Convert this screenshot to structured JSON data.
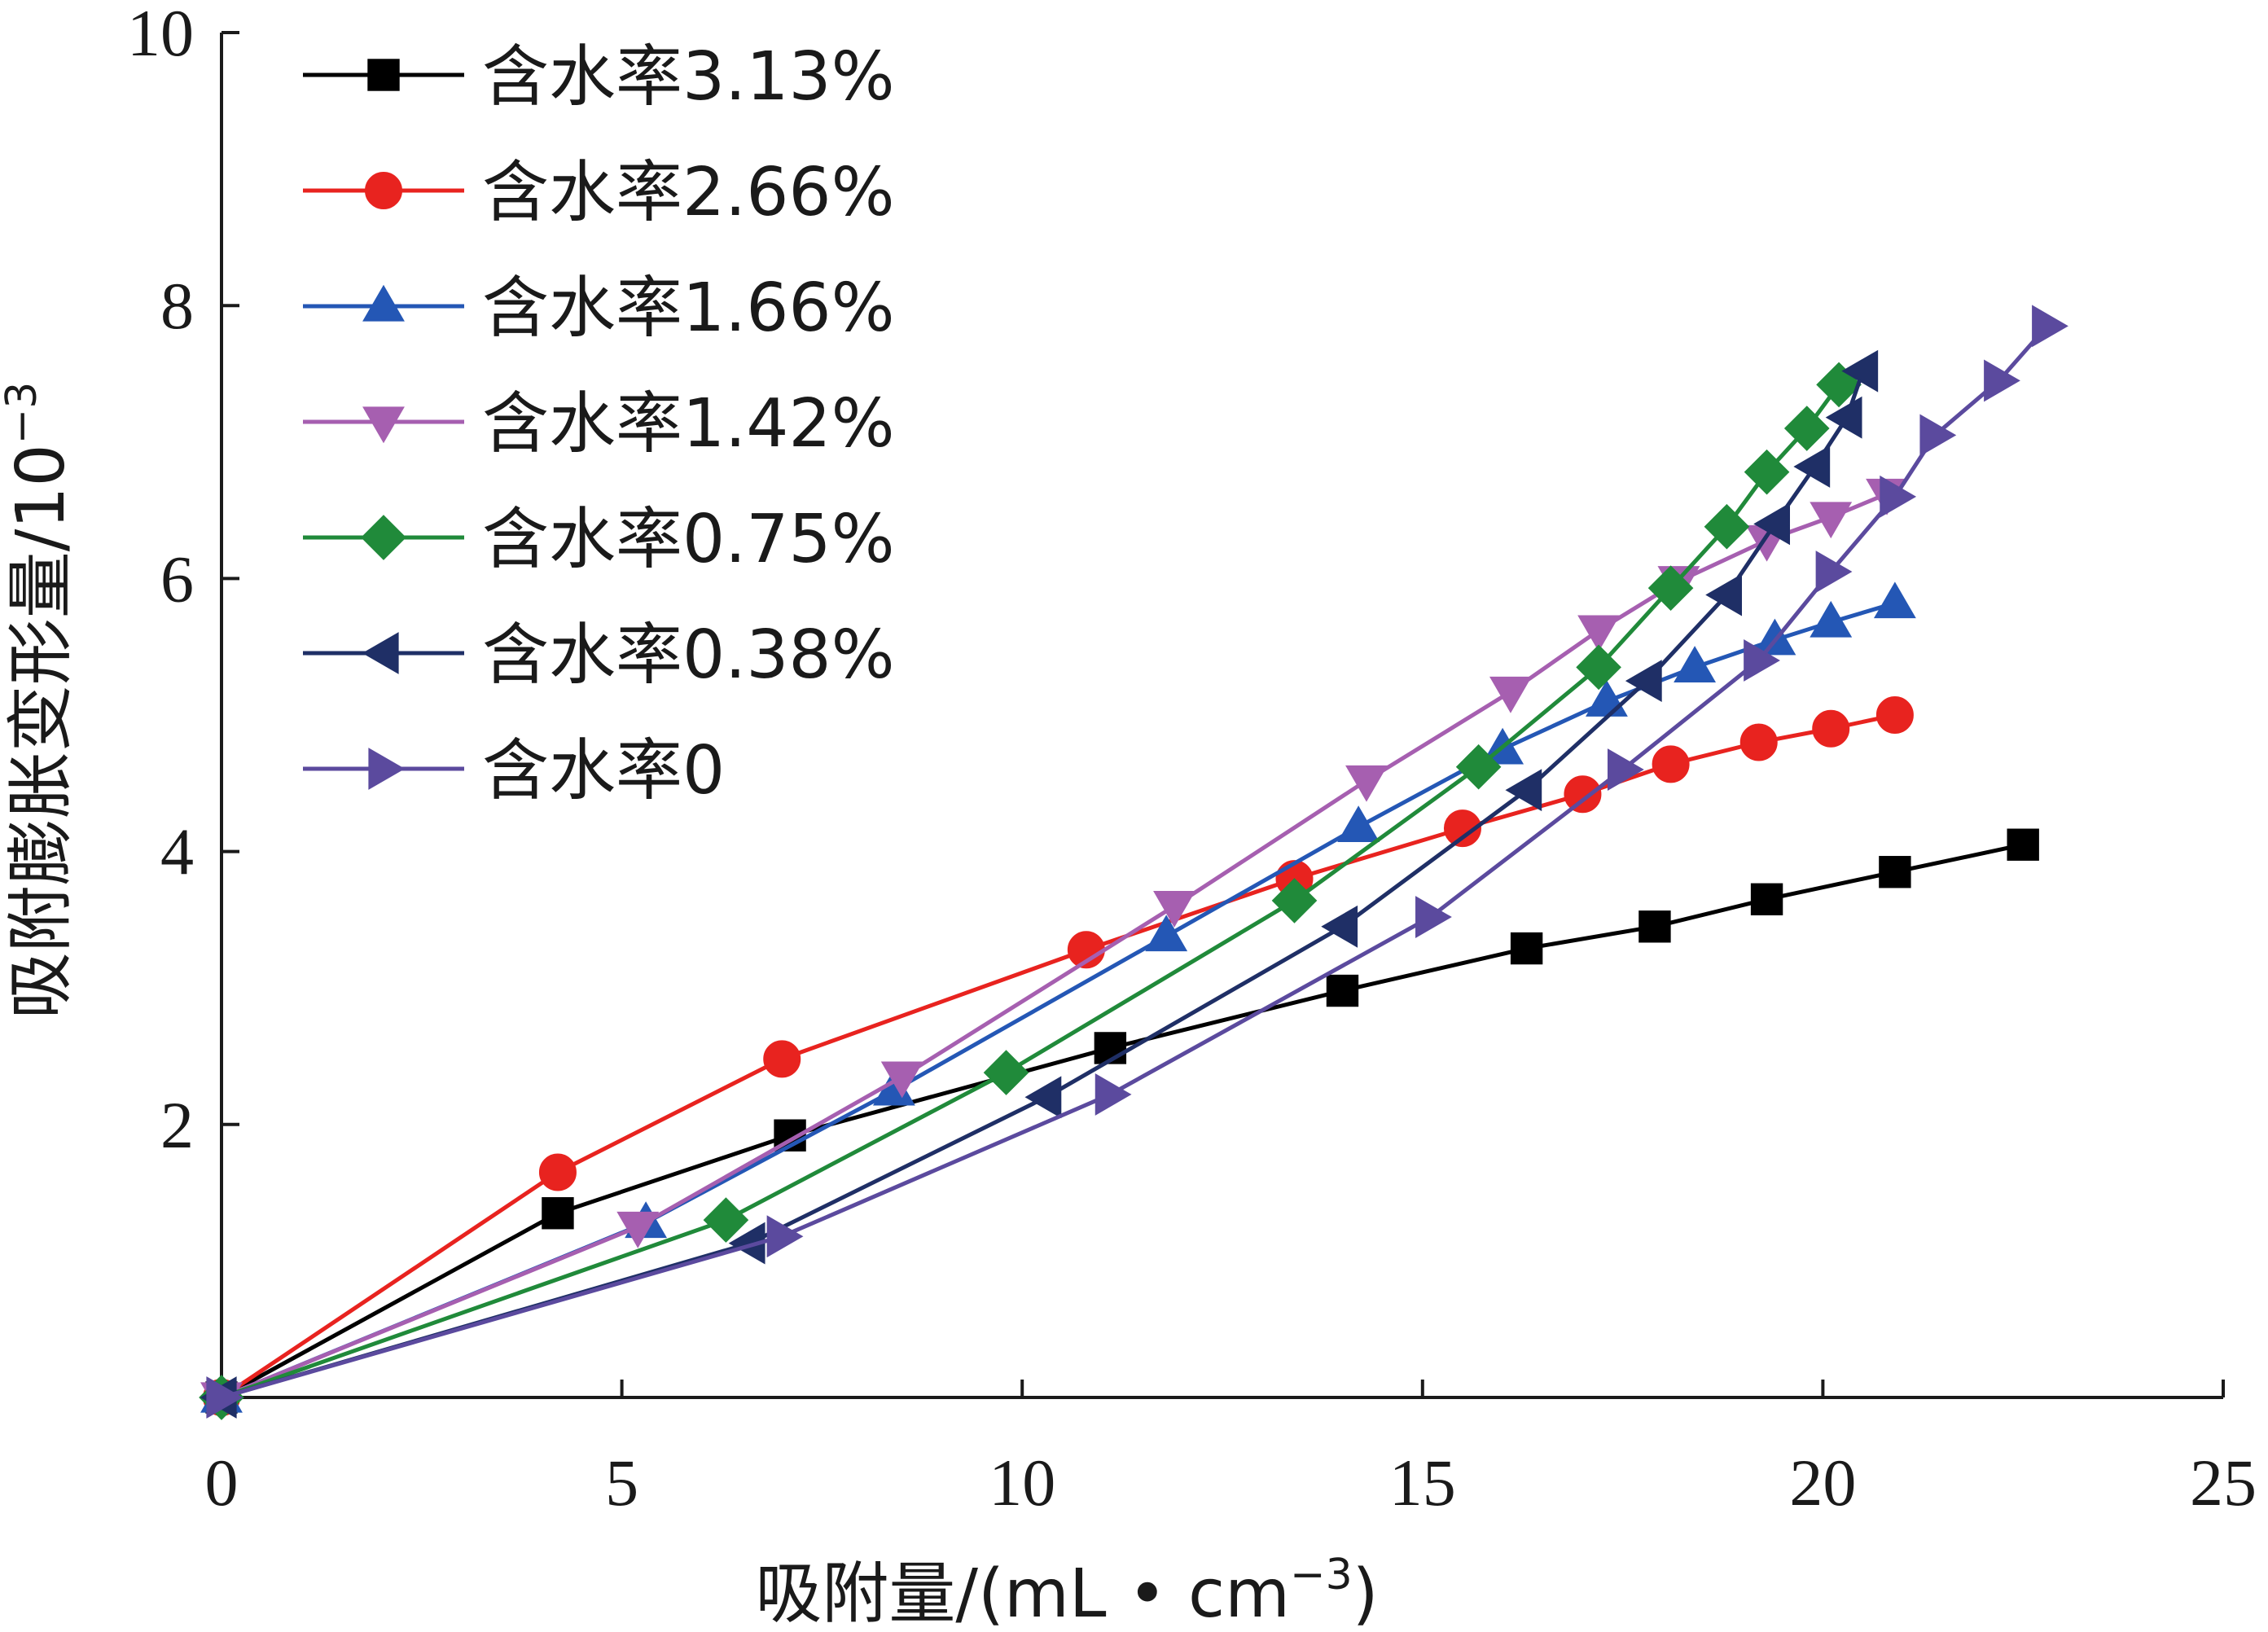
{
  "chart_data": {
    "type": "line",
    "title": "",
    "xlabel": "吸附量/(mL • cm",
    "xlabel_sup": "−3",
    "xlabel_suffix": ")",
    "ylabel": "吸附膨胀变形量/10",
    "ylabel_sup": "−3",
    "xlim": [
      0,
      25
    ],
    "ylim": [
      0,
      10
    ],
    "xticks": [
      0,
      5,
      10,
      15,
      20,
      25
    ],
    "yticks": [
      2,
      4,
      6,
      8,
      10
    ],
    "x_origin_label": "0",
    "grid": false,
    "legend_position": "top-left",
    "series": [
      {
        "name": "含水率3.13%",
        "color": "#000000",
        "marker": "square",
        "x": [
          0,
          4.2,
          7.1,
          11.1,
          14,
          16.3,
          17.9,
          19.3,
          20.9,
          22.5
        ],
        "y": [
          0,
          1.35,
          1.92,
          2.56,
          2.98,
          3.29,
          3.45,
          3.65,
          3.85,
          4.05
        ]
      },
      {
        "name": "含水率2.66%",
        "color": "#e8231f",
        "marker": "circle",
        "x": [
          0,
          4.2,
          7.0,
          10.8,
          13.4,
          15.5,
          17.0,
          18.1,
          19.2,
          20.1,
          20.9
        ],
        "y": [
          0,
          1.65,
          2.48,
          3.28,
          3.8,
          4.17,
          4.42,
          4.64,
          4.8,
          4.9,
          5.0
        ]
      },
      {
        "name": "含水率1.66%",
        "color": "#2457b5",
        "marker": "triangle-up",
        "x": [
          0,
          5.3,
          8.4,
          11.8,
          14.2,
          16.0,
          17.3,
          18.4,
          19.4,
          20.1,
          20.9
        ],
        "y": [
          0,
          1.28,
          2.25,
          3.38,
          4.18,
          4.75,
          5.1,
          5.35,
          5.55,
          5.68,
          5.82
        ]
      },
      {
        "name": "含水率1.42%",
        "color": "#a65fb0",
        "marker": "triangle-down",
        "x": [
          0,
          5.2,
          8.5,
          11.9,
          14.3,
          16.1,
          17.2,
          18.2,
          19.3,
          20.1,
          20.8
        ],
        "y": [
          0,
          1.25,
          2.35,
          3.6,
          4.52,
          5.17,
          5.62,
          5.98,
          6.28,
          6.45,
          6.62
        ]
      },
      {
        "name": "含水率0.75%",
        "color": "#208a3a",
        "marker": "diamond",
        "x": [
          0,
          6.3,
          9.8,
          13.4,
          15.7,
          17.2,
          18.1,
          18.8,
          19.3,
          19.8,
          20.2
        ],
        "y": [
          0,
          1.3,
          2.38,
          3.64,
          4.62,
          5.35,
          5.93,
          6.38,
          6.78,
          7.1,
          7.42
        ]
      },
      {
        "name": "含水率0.38%",
        "color": "#1f2f66",
        "marker": "triangle-left",
        "x": [
          0,
          6.6,
          10.3,
          14.0,
          16.3,
          17.8,
          18.8,
          19.4,
          19.9,
          20.3,
          20.5
        ],
        "y": [
          0,
          1.13,
          2.2,
          3.45,
          4.45,
          5.25,
          5.88,
          6.4,
          6.82,
          7.18,
          7.52
        ]
      },
      {
        "name": "含水率0",
        "color": "#5b4a9e",
        "marker": "triangle-right",
        "x": [
          0,
          7.0,
          11.1,
          15.1,
          17.5,
          19.2,
          20.1,
          20.9,
          21.4,
          22.2,
          22.8
        ],
        "y": [
          0,
          1.18,
          2.22,
          3.52,
          4.6,
          5.4,
          6.05,
          6.6,
          7.05,
          7.45,
          7.85
        ]
      }
    ]
  }
}
